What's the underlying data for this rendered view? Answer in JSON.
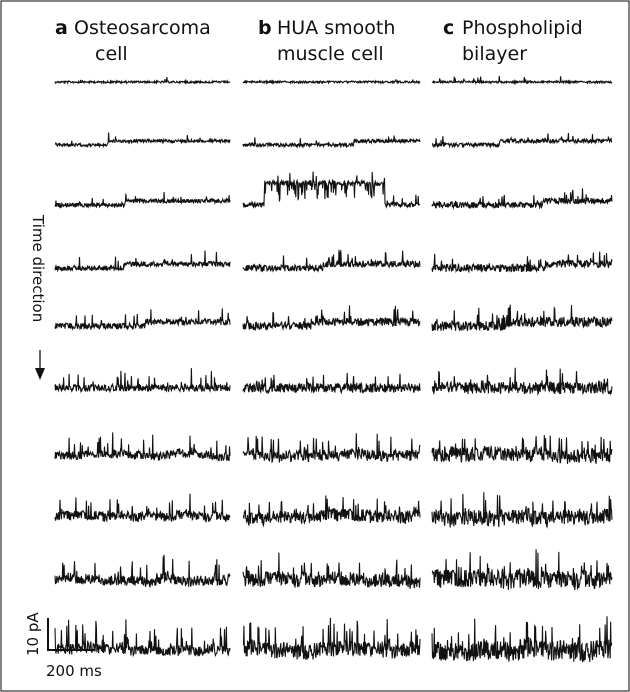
{
  "panels": [
    {
      "letter": "a",
      "title_lines": [
        "Osteosarcoma",
        "cell"
      ]
    },
    {
      "letter": "b",
      "title_lines": [
        "HUA smooth",
        "muscle cell"
      ]
    },
    {
      "letter": "c",
      "title_lines": [
        "Phospholipid",
        "bilayer"
      ]
    }
  ],
  "time_label": "Time direction",
  "scale_bar": {
    "current": "10 pA",
    "time": "200 ms"
  }
}
